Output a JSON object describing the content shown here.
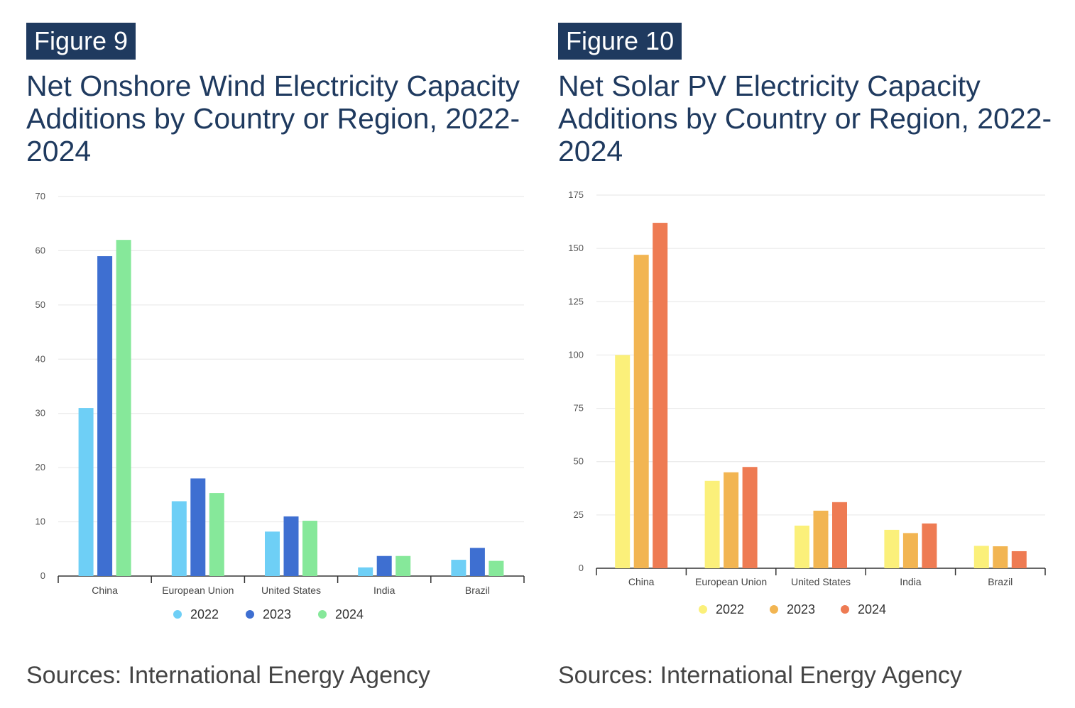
{
  "figures": [
    {
      "label": "Figure 9",
      "title": "Net Onshore Wind Electricity Capacity Additions by Country or Region, 2022-2024",
      "sources": "Sources: International Energy Agency"
    },
    {
      "label": "Figure 10",
      "title": "Net Solar PV Electricity Capacity Additions by Country or Region, 2022-2024",
      "sources": "Sources: International Energy Agency"
    }
  ],
  "chart_data": [
    {
      "type": "bar",
      "title": "Net Onshore Wind Electricity Capacity Additions by Country or Region, 2022-2024",
      "xlabel": "",
      "ylabel": "",
      "ylim": [
        0,
        70
      ],
      "yticks": [
        0,
        10,
        20,
        30,
        40,
        50,
        60,
        70
      ],
      "grid": true,
      "legend_position": "bottom",
      "categories": [
        "China",
        "European Union",
        "United States",
        "India",
        "Brazil"
      ],
      "series": [
        {
          "name": "2022",
          "color": "#6ecff6",
          "values": [
            31,
            13.8,
            8.2,
            1.6,
            3
          ]
        },
        {
          "name": "2023",
          "color": "#3e6fd1",
          "values": [
            59,
            18,
            11,
            3.7,
            5.2
          ]
        },
        {
          "name": "2024",
          "color": "#86e89a",
          "values": [
            62,
            15.3,
            10.2,
            3.7,
            2.8
          ]
        }
      ]
    },
    {
      "type": "bar",
      "title": "Net Solar PV Electricity Capacity Additions by Country or Region, 2022-2024",
      "xlabel": "",
      "ylabel": "",
      "ylim": [
        0,
        175
      ],
      "yticks": [
        0,
        25,
        50,
        75,
        100,
        125,
        150,
        175
      ],
      "grid": true,
      "legend_position": "bottom",
      "categories": [
        "China",
        "European Union",
        "United States",
        "India",
        "Brazil"
      ],
      "series": [
        {
          "name": "2022",
          "color": "#fbf07a",
          "values": [
            100,
            41,
            20,
            18,
            10.5
          ]
        },
        {
          "name": "2023",
          "color": "#f2b552",
          "values": [
            147,
            45,
            27,
            16.5,
            10.3
          ]
        },
        {
          "name": "2024",
          "color": "#ee7b53",
          "values": [
            162,
            47.5,
            31,
            21,
            8
          ]
        }
      ]
    }
  ]
}
